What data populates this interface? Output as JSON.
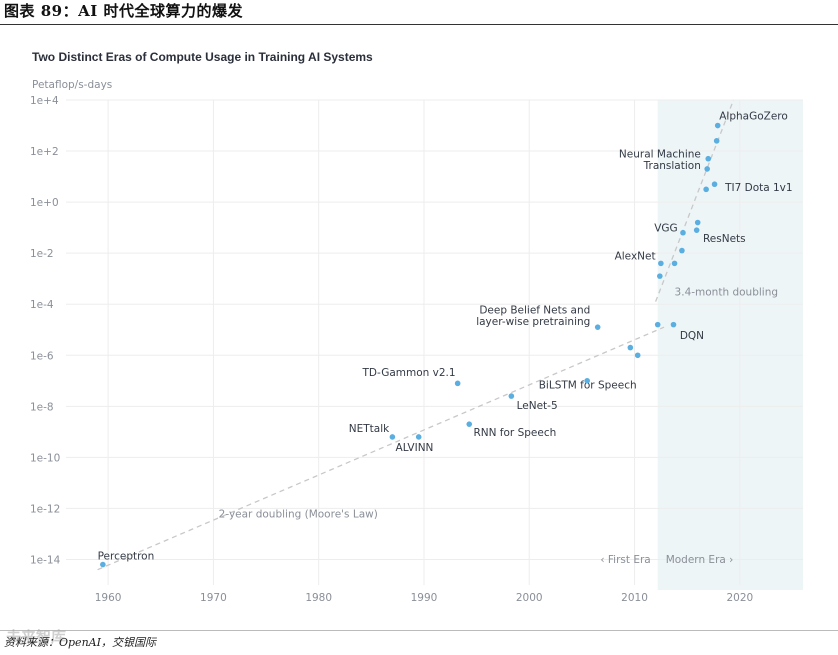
{
  "header": {
    "title": "图表 89：AI 时代全球算力的爆发"
  },
  "source": {
    "text": "资料来源：OpenAI，交银国际",
    "watermark": "未来智库"
  },
  "colors": {
    "point": "#5aaee0",
    "modern_bg": "#eef5f7",
    "trend": "#c8c8c8",
    "grid": "#ededed",
    "axis_text": "#8a8f98",
    "label_text": "#333a45"
  },
  "chart_data": {
    "type": "scatter",
    "title": "Two Distinct Eras of Compute Usage in Training AI Systems",
    "ylabel": "Petaflop/s-days",
    "xlabel": "",
    "xlim": [
      1956,
      2026
    ],
    "ylim_log10": [
      -15,
      4
    ],
    "y_scale": "log",
    "x_ticks": [
      1960,
      1970,
      1980,
      1990,
      2000,
      2010,
      2020
    ],
    "y_ticks": [
      {
        "exp": 4,
        "label": "1e+4"
      },
      {
        "exp": 2,
        "label": "1e+2"
      },
      {
        "exp": 0,
        "label": "1e+0"
      },
      {
        "exp": -2,
        "label": "1e-2"
      },
      {
        "exp": -4,
        "label": "1e-4"
      },
      {
        "exp": -6,
        "label": "1e-6"
      },
      {
        "exp": -8,
        "label": "1e-8"
      },
      {
        "exp": -10,
        "label": "1e-10"
      },
      {
        "exp": -12,
        "label": "1e-12"
      },
      {
        "exp": -14,
        "label": "1e-14"
      }
    ],
    "grid": true,
    "modern_era_start": 2012.2,
    "eras": {
      "first": "‹ First Era",
      "modern": "Modern Era ›"
    },
    "points": [
      {
        "year": 1959.5,
        "exp": -14.2
      },
      {
        "year": 1987.0,
        "exp": -9.2
      },
      {
        "year": 1989.5,
        "exp": -9.2
      },
      {
        "year": 1993.2,
        "exp": -7.1
      },
      {
        "year": 1994.3,
        "exp": -8.7
      },
      {
        "year": 1998.3,
        "exp": -7.6
      },
      {
        "year": 2005.5,
        "exp": -7.0
      },
      {
        "year": 2006.5,
        "exp": -4.9
      },
      {
        "year": 2009.6,
        "exp": -5.7
      },
      {
        "year": 2010.3,
        "exp": -6.0
      },
      {
        "year": 2012.2,
        "exp": -4.8
      },
      {
        "year": 2012.4,
        "exp": -2.9
      },
      {
        "year": 2012.5,
        "exp": -2.4
      },
      {
        "year": 2013.7,
        "exp": -4.8
      },
      {
        "year": 2013.8,
        "exp": -2.4
      },
      {
        "year": 2014.5,
        "exp": -1.9
      },
      {
        "year": 2014.6,
        "exp": -1.2
      },
      {
        "year": 2015.9,
        "exp": -1.1
      },
      {
        "year": 2016.0,
        "exp": -0.8
      },
      {
        "year": 2016.8,
        "exp": 0.5
      },
      {
        "year": 2016.9,
        "exp": 1.3
      },
      {
        "year": 2017.0,
        "exp": 1.7
      },
      {
        "year": 2017.6,
        "exp": 0.7
      },
      {
        "year": 2017.8,
        "exp": 2.4
      },
      {
        "year": 2017.9,
        "exp": 3.0
      }
    ],
    "labels": [
      {
        "text": "AlphaGoZero",
        "year": 2021.3,
        "exp": 3.4,
        "anchor": "middle"
      },
      {
        "text": "Neural Machine",
        "year": 2016.3,
        "exp": 1.9,
        "anchor": "end"
      },
      {
        "text": "Translation",
        "year": 2016.3,
        "exp": 1.45,
        "anchor": "end"
      },
      {
        "text": "TI7 Dota 1v1",
        "year": 2018.6,
        "exp": 0.6,
        "anchor": "start"
      },
      {
        "text": "VGG",
        "year": 2014.1,
        "exp": -1.0,
        "anchor": "end"
      },
      {
        "text": "ResNets",
        "year": 2016.5,
        "exp": -1.4,
        "anchor": "start"
      },
      {
        "text": "AlexNet",
        "year": 2012.0,
        "exp": -2.1,
        "anchor": "end"
      },
      {
        "text": "3.4-month doubling",
        "year": 2013.8,
        "exp": -3.5,
        "anchor": "start"
      },
      {
        "text": "Deep Belief Nets and",
        "year": 2005.8,
        "exp": -4.2,
        "anchor": "end"
      },
      {
        "text": "layer-wise pretraining",
        "year": 2005.8,
        "exp": -4.65,
        "anchor": "end"
      },
      {
        "text": "DQN",
        "year": 2014.3,
        "exp": -5.2,
        "anchor": "start"
      },
      {
        "text": "TD-Gammon v2.1",
        "year": 1993.0,
        "exp": -6.65,
        "anchor": "end"
      },
      {
        "text": "BiLSTM for Speech",
        "year": 2000.9,
        "exp": -7.15,
        "anchor": "start"
      },
      {
        "text": "LeNet-5",
        "year": 1998.8,
        "exp": -7.95,
        "anchor": "start"
      },
      {
        "text": "NETtalk",
        "year": 1986.7,
        "exp": -8.85,
        "anchor": "end"
      },
      {
        "text": "RNN for Speech",
        "year": 1994.7,
        "exp": -9.0,
        "anchor": "start"
      },
      {
        "text": "ALVINN",
        "year": 1987.3,
        "exp": -9.6,
        "anchor": "start"
      },
      {
        "text": "2-year doubling (Moore's Law)",
        "year": 1970.5,
        "exp": -12.2,
        "anchor": "start"
      },
      {
        "text": "Perceptron",
        "year": 1959.0,
        "exp": -13.85,
        "anchor": "start"
      }
    ],
    "trend_lines": [
      {
        "name": "moores-law",
        "from": {
          "year": 1959.0,
          "exp": -14.4
        },
        "to": {
          "year": 2012.8,
          "exp": -4.9
        }
      },
      {
        "name": "modern-doubling",
        "from": {
          "year": 2012.0,
          "exp": -3.9
        },
        "to": {
          "year": 2019.4,
          "exp": 4.0
        }
      }
    ]
  }
}
